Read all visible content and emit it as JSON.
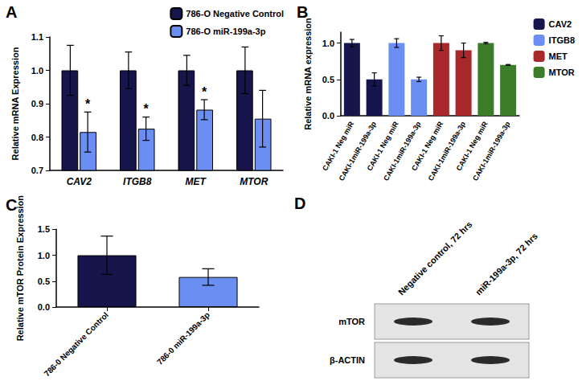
{
  "chart_data": [
    {
      "type": "bar",
      "title": "A",
      "categories": [
        "CAV2",
        "ITGB8",
        "MET",
        "MTOR"
      ],
      "ylabel": "Relative mRNA Expression",
      "ylim": [
        0.7,
        1.1
      ],
      "yticks": [
        0.7,
        0.8,
        0.9,
        {
          "value": 1,
          "label": "1.0"
        },
        1.1
      ],
      "legend": "top-right",
      "series": [
        {
          "name": "786-O Negative Control",
          "color": "#16164d",
          "values": [
            1,
            1,
            1,
            1
          ],
          "errors": [
            0.075,
            0.055,
            0.045,
            0.07
          ]
        },
        {
          "name": "786-O miR-199a-3p",
          "color": "#6b8ef2",
          "values": [
            0.815,
            0.825,
            0.882,
            0.855
          ],
          "errors": [
            0.06,
            0.035,
            0.03,
            0.085
          ],
          "annotations": [
            "*",
            "*",
            "*",
            null
          ]
        }
      ]
    },
    {
      "type": "bar",
      "title": "B",
      "categories": [
        "CAKI-1 Neg miR",
        "CAKI-1miR-199a-3p",
        "CAKI-1 Neg miR",
        "CAKI-1miR-199a-3p",
        "CAKI-1 Neg miR",
        "CAKI-1miR-199a-3p",
        "CAKI-1 Neg miR",
        "CAKI-1miR-199a-3p"
      ],
      "ylabel": "Relative mRNA expression",
      "ylim": [
        0,
        1.15
      ],
      "yticks": [
        {
          "value": 0,
          "label": "0.0"
        },
        0.5,
        {
          "value": 1,
          "label": "1.0"
        }
      ],
      "legend": "right",
      "series": [
        {
          "name": "CAV2",
          "color": "#16164d",
          "values": [
            1,
            0.5,
            null,
            null,
            null,
            null,
            null,
            null
          ],
          "errors": [
            0.05,
            0.09,
            null,
            null,
            null,
            null,
            null,
            null
          ]
        },
        {
          "name": "ITGB8",
          "color": "#6b8ef2",
          "values": [
            null,
            null,
            1,
            0.5,
            null,
            null,
            null,
            null
          ],
          "errors": [
            null,
            null,
            0.06,
            0.03,
            null,
            null,
            null,
            null
          ]
        },
        {
          "name": "MET",
          "color": "#a8282c",
          "values": [
            null,
            null,
            null,
            null,
            1,
            0.9,
            null,
            null
          ],
          "errors": [
            null,
            null,
            null,
            null,
            0.1,
            0.1,
            null,
            null
          ]
        },
        {
          "name": "MTOR",
          "color": "#3c7d2a",
          "values": [
            null,
            null,
            null,
            null,
            null,
            null,
            1,
            0.7
          ],
          "errors": [
            null,
            null,
            null,
            null,
            null,
            null,
            0.01,
            0.005
          ]
        }
      ]
    },
    {
      "type": "bar",
      "title": "C",
      "categories": [
        "786-0 Negative Control",
        "786-0 miR-199a-3p"
      ],
      "ylabel": "Relative mTOR Protein Expression",
      "ylim": [
        0,
        1.5
      ],
      "yticks": [
        {
          "value": 0,
          "label": "0.0"
        },
        0.5,
        {
          "value": 1,
          "label": "1.0"
        },
        1.5
      ],
      "colors": [
        "#16164d",
        "#6b8ef2"
      ],
      "values": [
        1,
        0.58
      ],
      "errors": [
        0.37,
        0.16
      ]
    }
  ],
  "blot": {
    "title": "D",
    "columns": [
      "Negative control, 72 hrs",
      "miR-199a-3p, 72 hrs"
    ],
    "rows": [
      "mTOR",
      "β-ACTIN"
    ]
  }
}
